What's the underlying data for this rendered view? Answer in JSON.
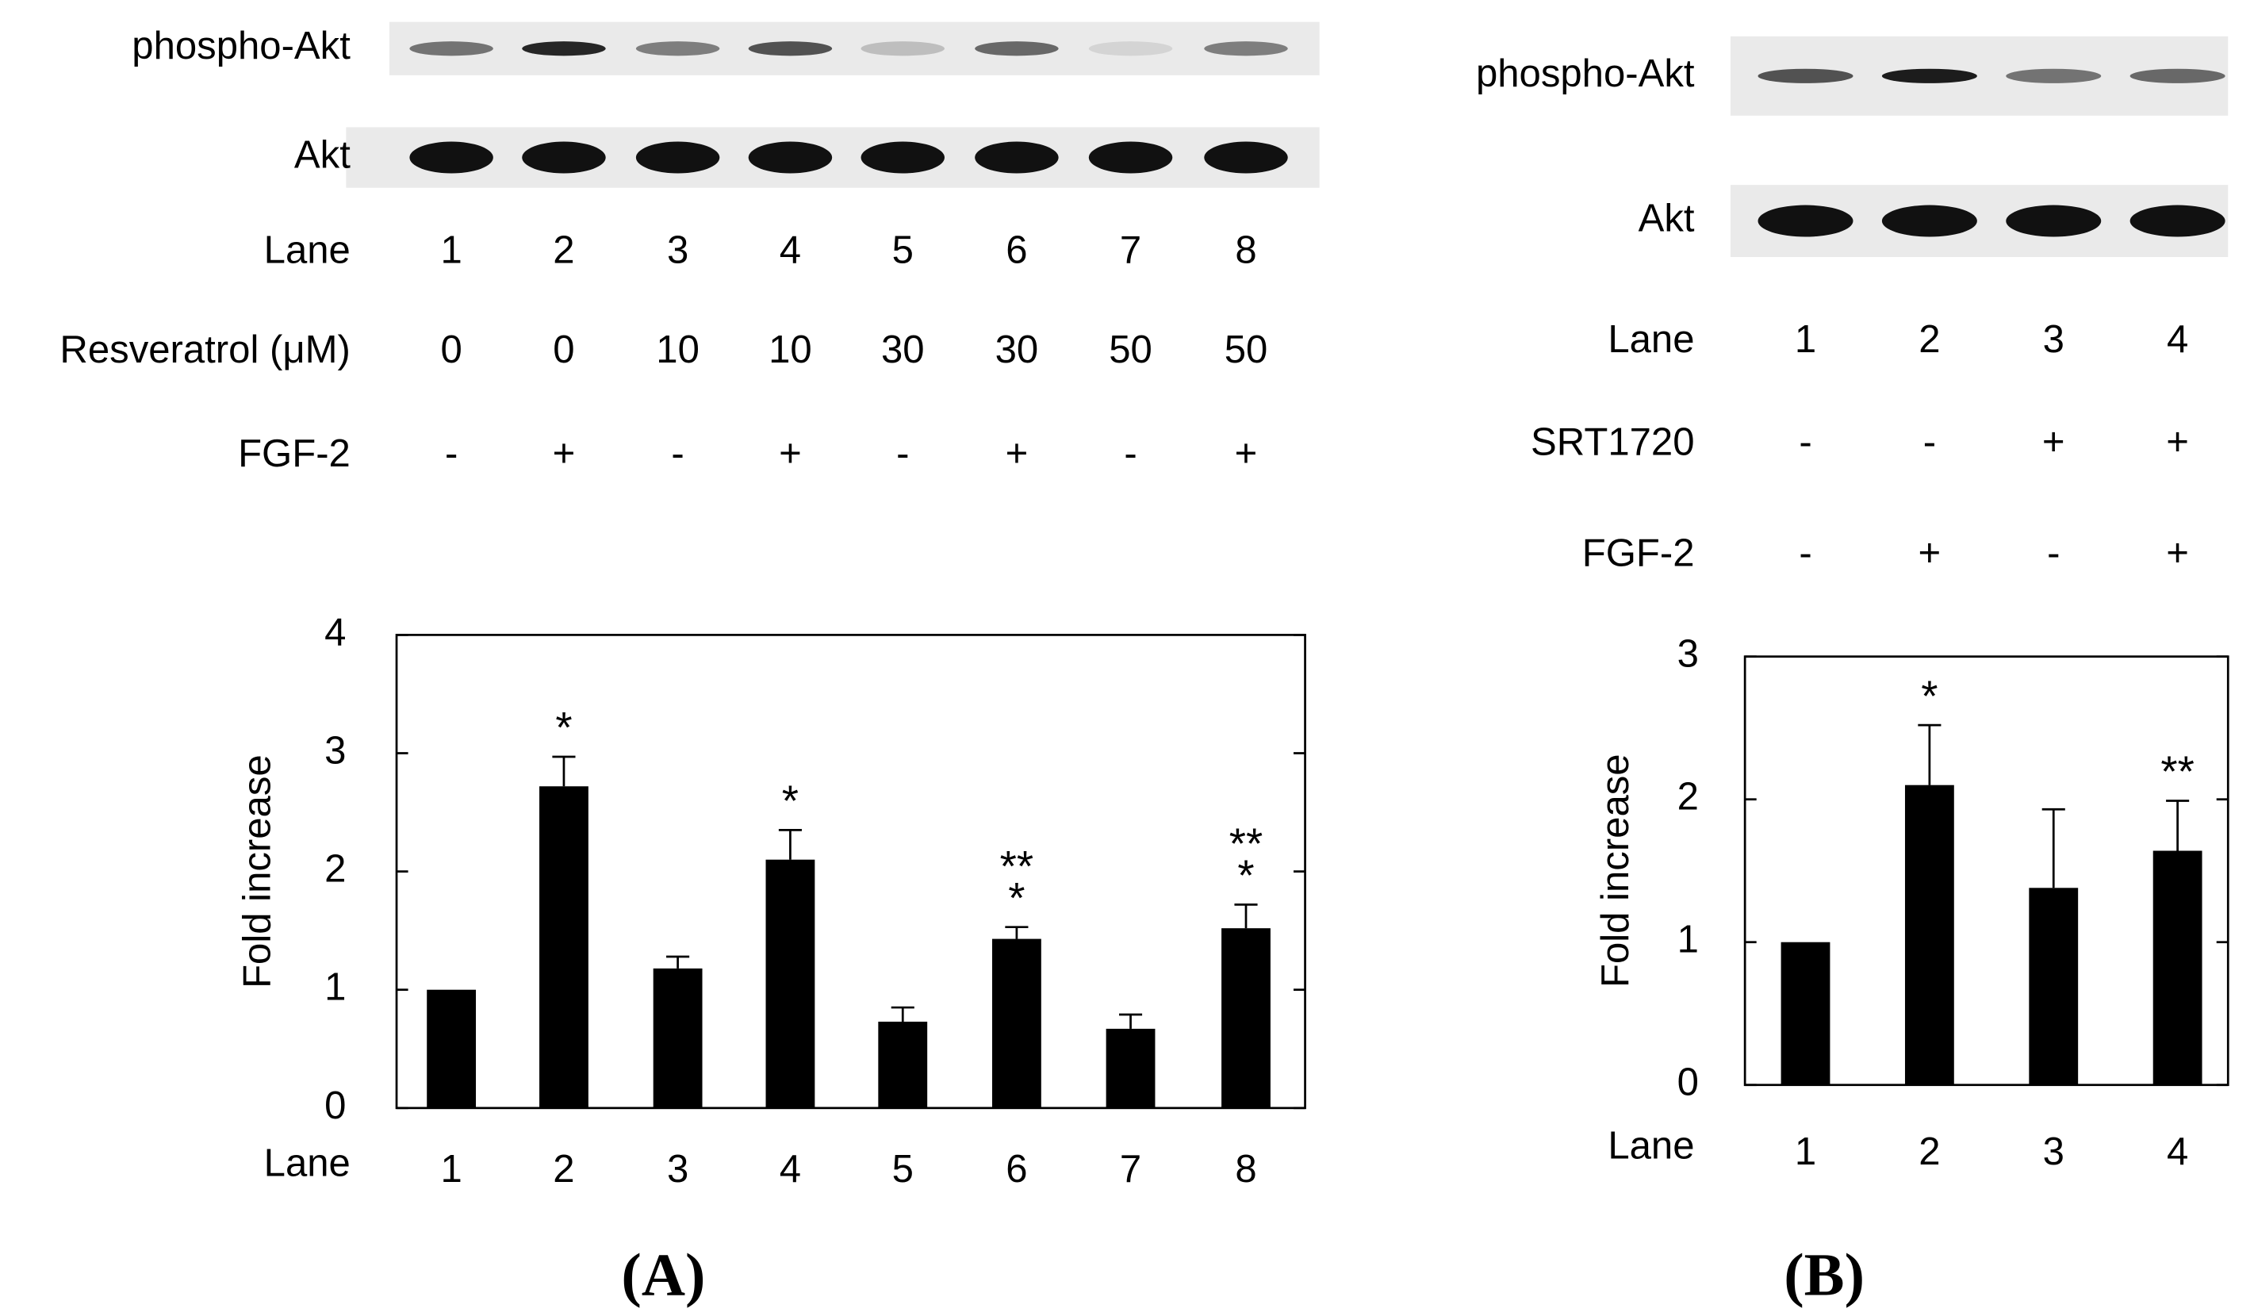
{
  "chart_data": [
    {
      "type": "bar",
      "panel_label": "(A)",
      "x_label": "Lane",
      "y_label": "Fold increase",
      "categories": [
        "1",
        "2",
        "3",
        "4",
        "5",
        "6",
        "7",
        "8"
      ],
      "values": [
        1,
        2.72,
        1.18,
        2.1,
        0.73,
        1.43,
        0.67,
        1.52
      ],
      "errors": [
        0,
        0.25,
        0.1,
        0.25,
        0.12,
        0.1,
        0.12,
        0.2
      ],
      "annotations": [
        null,
        [
          "*"
        ],
        null,
        [
          "*"
        ],
        null,
        [
          "**",
          "*"
        ],
        null,
        [
          "**",
          "*"
        ]
      ],
      "color": "#000000",
      "ylim": [
        0,
        4
      ],
      "yticks": [
        0,
        1,
        2,
        3,
        4
      ],
      "blot_rows": [
        "phospho-Akt",
        "Akt"
      ],
      "lane_label": "Lane",
      "conditions": [
        {
          "name": "Resveratrol (μM)",
          "values": [
            "0",
            "0",
            "10",
            "10",
            "30",
            "30",
            "50",
            "50"
          ]
        },
        {
          "name": "FGF-2",
          "values": [
            "-",
            "+",
            "-",
            "+",
            "-",
            "+",
            "-",
            "+"
          ]
        }
      ]
    },
    {
      "type": "bar",
      "panel_label": "(B)",
      "x_label": "Lane",
      "y_label": "Fold increase",
      "categories": [
        "1",
        "2",
        "3",
        "4"
      ],
      "values": [
        1,
        2.1,
        1.38,
        1.64
      ],
      "errors": [
        0,
        0.42,
        0.55,
        0.35
      ],
      "annotations": [
        null,
        [
          "*"
        ],
        null,
        [
          "**"
        ]
      ],
      "color": "#000000",
      "ylim": [
        0,
        3
      ],
      "yticks": [
        0,
        1,
        2,
        3
      ],
      "blot_rows": [
        "phospho-Akt",
        "Akt"
      ],
      "lane_label": "Lane",
      "conditions": [
        {
          "name": "SRT1720",
          "values": [
            "-",
            "-",
            "+",
            "+"
          ]
        },
        {
          "name": "FGF-2",
          "values": [
            "-",
            "+",
            "-",
            "+"
          ]
        }
      ]
    }
  ]
}
